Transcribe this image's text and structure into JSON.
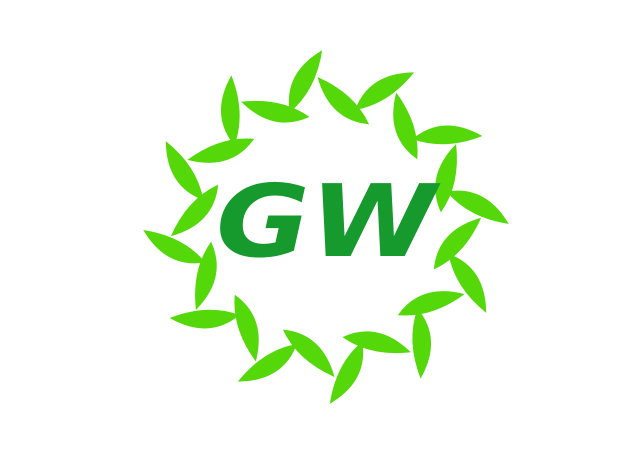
{
  "logo": {
    "monogram": "GW",
    "leaf_color": "#55d80a",
    "monogram_color": "#169a2e",
    "background_color": "#ffffff",
    "leaf_count": 24
  }
}
